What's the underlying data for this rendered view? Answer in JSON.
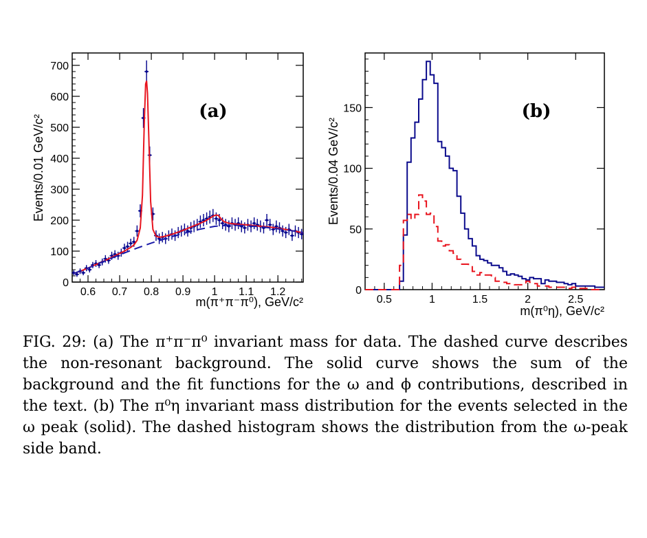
{
  "chart_data": [
    {
      "type": "line",
      "panel_label": "(a)",
      "ylabel": "Events/0.01 GeV/c²",
      "xlabel": "m(π⁺π⁻π⁰), GeV/c²",
      "xlim": [
        0.55,
        1.28
      ],
      "ylim": [
        0,
        740
      ],
      "xticks": [
        "0.6",
        "0.7",
        "0.8",
        "0.9",
        "1",
        "1.1",
        "1.2"
      ],
      "yticks": [
        "0",
        "100",
        "200",
        "300",
        "400",
        "500",
        "600",
        "700"
      ],
      "grid": false,
      "series": [
        {
          "kind": "points_with_errors",
          "color": "#00008b",
          "x": [
            0.555,
            0.565,
            0.575,
            0.585,
            0.595,
            0.605,
            0.615,
            0.625,
            0.635,
            0.645,
            0.655,
            0.665,
            0.675,
            0.685,
            0.695,
            0.705,
            0.715,
            0.725,
            0.735,
            0.745,
            0.755,
            0.765,
            0.775,
            0.785,
            0.795,
            0.805,
            0.815,
            0.825,
            0.835,
            0.845,
            0.855,
            0.865,
            0.875,
            0.885,
            0.895,
            0.905,
            0.915,
            0.925,
            0.935,
            0.945,
            0.955,
            0.965,
            0.975,
            0.985,
            0.995,
            1.005,
            1.015,
            1.025,
            1.035,
            1.045,
            1.055,
            1.065,
            1.075,
            1.085,
            1.095,
            1.105,
            1.115,
            1.125,
            1.135,
            1.145,
            1.155,
            1.165,
            1.175,
            1.185,
            1.195,
            1.205,
            1.215,
            1.225,
            1.235,
            1.245,
            1.255,
            1.265,
            1.275
          ],
          "y": [
            30,
            25,
            35,
            30,
            45,
            40,
            55,
            60,
            55,
            65,
            75,
            70,
            85,
            90,
            85,
            95,
            110,
            115,
            125,
            130,
            165,
            230,
            530,
            680,
            410,
            220,
            150,
            140,
            145,
            140,
            150,
            155,
            150,
            160,
            165,
            170,
            165,
            175,
            180,
            185,
            195,
            200,
            205,
            210,
            215,
            205,
            200,
            190,
            185,
            180,
            190,
            185,
            190,
            180,
            175,
            185,
            180,
            190,
            185,
            180,
            175,
            200,
            185,
            170,
            180,
            175,
            165,
            160,
            170,
            150,
            165,
            160,
            155
          ],
          "yerr": [
            8,
            8,
            9,
            8,
            10,
            9,
            10,
            11,
            10,
            11,
            12,
            11,
            13,
            13,
            13,
            13,
            14,
            15,
            15,
            16,
            18,
            21,
            32,
            36,
            28,
            21,
            17,
            17,
            17,
            17,
            17,
            18,
            17,
            18,
            18,
            19,
            18,
            19,
            19,
            19,
            20,
            20,
            20,
            21,
            21,
            20,
            20,
            19,
            19,
            19,
            19,
            19,
            19,
            19,
            18,
            19,
            19,
            19,
            19,
            19,
            18,
            20,
            19,
            18,
            19,
            18,
            18,
            18,
            18,
            17,
            18,
            18,
            17
          ]
        },
        {
          "kind": "line",
          "name": "solid",
          "color": "#e8141e",
          "x": [
            0.555,
            0.575,
            0.595,
            0.615,
            0.635,
            0.655,
            0.675,
            0.695,
            0.715,
            0.735,
            0.745,
            0.755,
            0.765,
            0.772,
            0.778,
            0.782,
            0.785,
            0.788,
            0.792,
            0.798,
            0.805,
            0.815,
            0.825,
            0.835,
            0.85,
            0.87,
            0.89,
            0.91,
            0.93,
            0.95,
            0.97,
            0.985,
            0.995,
            1.005,
            1.012,
            1.02,
            1.03,
            1.045,
            1.06,
            1.08,
            1.1,
            1.12,
            1.14,
            1.16,
            1.18,
            1.2,
            1.22,
            1.24,
            1.26,
            1.28
          ],
          "y": [
            28,
            35,
            43,
            52,
            61,
            70,
            80,
            90,
            100,
            112,
            120,
            135,
            175,
            280,
            520,
            640,
            650,
            610,
            470,
            260,
            170,
            148,
            145,
            146,
            150,
            156,
            163,
            171,
            180,
            188,
            197,
            206,
            213,
            217,
            215,
            205,
            195,
            190,
            188,
            186,
            185,
            183,
            181,
            179,
            177,
            174,
            171,
            167,
            163,
            159
          ]
        },
        {
          "kind": "line",
          "name": "dashed",
          "color": "#1a1aa8",
          "dashed": true,
          "x": [
            0.555,
            0.6,
            0.65,
            0.7,
            0.75,
            0.8,
            0.85,
            0.9,
            0.95,
            1.0,
            1.05,
            1.1,
            1.15,
            1.2,
            1.25,
            1.28
          ],
          "y": [
            28,
            45,
            67,
            88,
            108,
            126,
            142,
            157,
            170,
            180,
            184,
            182,
            178,
            172,
            165,
            160
          ]
        }
      ]
    },
    {
      "type": "line",
      "panel_label": "(b)",
      "ylabel": "Events/0.04 GeV/c²",
      "xlabel": "m(π⁰η), GeV/c²",
      "xlim": [
        0.3,
        2.8
      ],
      "ylim": [
        0,
        195
      ],
      "xticks": [
        "0.5",
        "1",
        "1.5",
        "2",
        "2.5"
      ],
      "yticks": [
        "0",
        "50",
        "100",
        "150"
      ],
      "grid": false,
      "series": [
        {
          "kind": "step",
          "name": "solid",
          "color": "#0a0a8c",
          "bin_edges_start": 0.3,
          "bin_width": 0.04,
          "values": [
            0,
            0,
            0,
            0,
            0,
            0,
            0,
            0,
            0,
            7,
            45,
            105,
            125,
            138,
            157,
            173,
            188,
            177,
            170,
            122,
            117,
            110,
            100,
            98,
            77,
            63,
            50,
            42,
            36,
            28,
            25,
            24,
            22,
            20,
            20,
            18,
            15,
            12,
            13,
            12,
            11,
            9,
            8,
            10,
            9,
            9,
            5,
            8,
            7,
            7,
            6,
            6,
            5,
            4,
            5,
            3,
            3,
            3,
            3,
            3,
            2,
            2,
            2
          ]
        },
        {
          "kind": "step",
          "name": "dashed",
          "color": "#e8141e",
          "dashed": true,
          "bin_edges_start": 0.3,
          "bin_width": 0.04,
          "values": [
            0,
            0,
            0,
            0,
            0,
            0,
            0,
            0,
            0,
            20,
            57,
            62,
            58,
            62,
            78,
            73,
            62,
            63,
            52,
            40,
            36,
            37,
            32,
            30,
            25,
            21,
            21,
            20,
            15,
            12,
            14,
            12,
            12,
            10,
            7,
            6,
            6,
            5,
            5,
            4,
            4,
            4,
            7,
            6,
            5,
            3,
            3,
            3,
            2,
            2,
            2,
            2,
            2,
            1,
            2,
            1,
            1,
            1,
            1,
            0,
            0,
            0,
            0
          ]
        }
      ]
    }
  ],
  "caption": {
    "label": "FIG. 29:",
    "text": "(a) The π⁺π⁻π⁰ invariant mass for data. The dashed curve describes the non-resonant background. The solid curve shows the sum of the background and the fit functions for the ω and ϕ contributions, described in the text. (b) The π⁰η invariant mass distribution for the events selected in the ω peak (solid). The dashed histogram shows the distribution from the ω-peak side band."
  }
}
